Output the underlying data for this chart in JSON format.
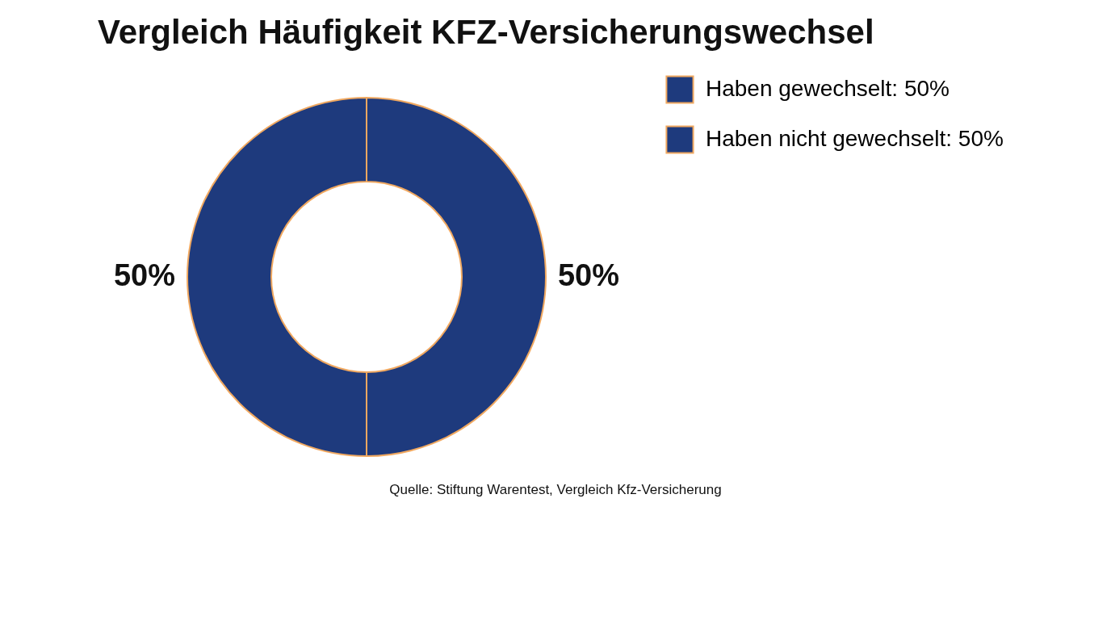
{
  "chart_data": {
    "type": "donut",
    "title": "Vergleich Häufigkeit KFZ-Versicherungswechsel",
    "categories": [
      "Haben gewechselt: 50%",
      "Haben nicht gewechselt: 50%"
    ],
    "values": [
      50,
      50
    ],
    "value_labels": [
      "50%",
      "50%"
    ],
    "colors": [
      "#1e3a7d",
      "#1e3a7d"
    ],
    "legend": "right",
    "annotations": [
      "Quelle: Stiftung Warentest, Vergleich Kfz-Versicherung"
    ]
  }
}
